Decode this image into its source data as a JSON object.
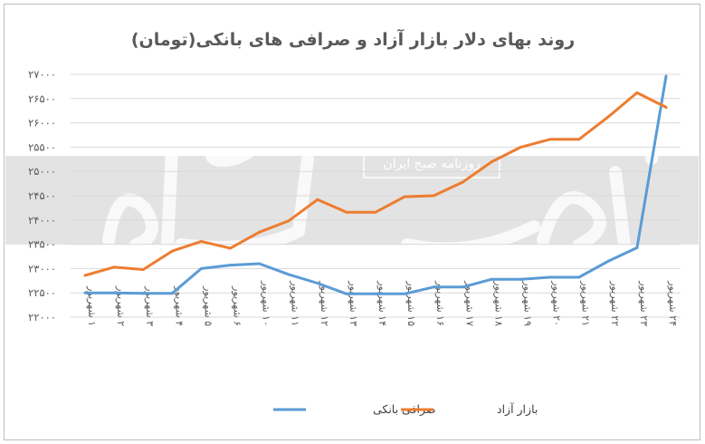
{
  "chart_data": {
    "type": "line",
    "title": "روند بهای دلار بازار آزاد و صرافی های بانکی(تومان)",
    "xlabel": "",
    "ylabel": "",
    "categories": [
      "۱ شهریور",
      "۲ شهریور",
      "۳ شهریور",
      "۴ شهریور",
      "۵ شهریور",
      "۶ شهریور",
      "۱۰ شهریور",
      "۱۱ شهریور",
      "۱۲ شهریور",
      "۱۳ شهریور",
      "۱۴ شهریور",
      "۱۵ شهریور",
      "۱۶ شهریور",
      "۱۷ شهریور",
      "۱۸ شهریور",
      "۱۹ شهریور",
      "۲۰ شهریور",
      "۲۱ شهریور",
      "۲۲ شهریور",
      "۲۳ شهریور",
      "۲۴ شهریور"
    ],
    "ylim": [
      22000,
      27000
    ],
    "yticks": [
      22000,
      22500,
      23000,
      23500,
      24000,
      24500,
      25000,
      25500,
      26000,
      26500,
      27000
    ],
    "ytick_labels": [
      "۲۲۰۰۰",
      "۲۲۵۰۰",
      "۲۳۰۰۰",
      "۲۳۵۰۰",
      "۲۴۰۰۰",
      "۲۴۵۰۰",
      "۲۵۰۰۰",
      "۲۵۵۰۰",
      "۲۶۰۰۰",
      "۲۶۵۰۰",
      "۲۷۰۰۰"
    ],
    "grid": true,
    "legend_position": "bottom",
    "series": [
      {
        "name": "صرافی بانکی",
        "color": "#5b9bd5",
        "values": [
          22500,
          22500,
          22490,
          22490,
          23000,
          23070,
          23100,
          22880,
          22700,
          22480,
          22480,
          22480,
          22620,
          22620,
          22780,
          22780,
          22820,
          22820,
          23150,
          23430,
          26960
        ]
      },
      {
        "name": "بازار آزاد",
        "color": "#ed7d31",
        "values": [
          22860,
          23030,
          22980,
          23360,
          23560,
          23420,
          23750,
          23980,
          24420,
          24160,
          24160,
          24480,
          24500,
          24780,
          25200,
          25500,
          25660,
          25660,
          26120,
          26620,
          26320
        ]
      }
    ]
  },
  "watermark": {
    "source_text": "روزنامه صبح ایران",
    "logo_text": "دنیای اقتصاد"
  }
}
